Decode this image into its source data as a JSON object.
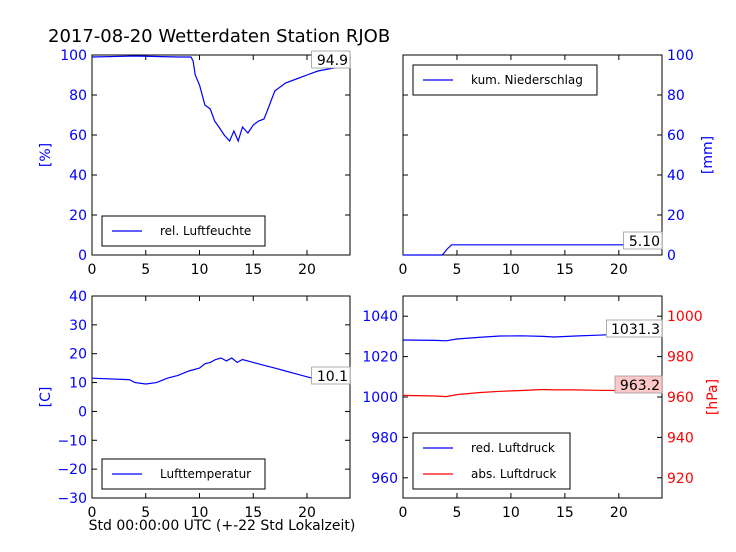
{
  "figure": {
    "title": "2017-08-20 Wetterdaten Station RJOB",
    "xlabel": "Std 00:00:00 UTC (+-22 Std Lokalzeit)"
  },
  "chart_data": [
    {
      "id": "humidity",
      "type": "line",
      "ylabel": "[%]",
      "ylabel_color": "#0000ff",
      "xlim": [
        0,
        24
      ],
      "ylim": [
        0,
        100
      ],
      "xticks": [
        "0",
        "5",
        "10",
        "15",
        "20"
      ],
      "yticks": [
        "0",
        "20",
        "40",
        "60",
        "80",
        "100"
      ],
      "ytick_color": "#0000ff",
      "series": [
        {
          "name": "rel. Luftfeuchte",
          "color": "#0000ff",
          "points": [
            [
              0,
              99
            ],
            [
              4,
              99.5
            ],
            [
              8,
              99
            ],
            [
              9.2,
              99
            ],
            [
              9.4,
              97
            ],
            [
              9.6,
              90
            ],
            [
              10,
              85
            ],
            [
              10.5,
              75
            ],
            [
              11,
              73
            ],
            [
              11.4,
              67
            ],
            [
              11.8,
              64
            ],
            [
              12.3,
              60
            ],
            [
              12.8,
              57
            ],
            [
              13.2,
              62
            ],
            [
              13.6,
              57
            ],
            [
              14,
              64
            ],
            [
              14.5,
              61
            ],
            [
              15,
              65
            ],
            [
              15.5,
              67
            ],
            [
              16,
              68
            ],
            [
              16.3,
              72
            ],
            [
              17,
              82
            ],
            [
              18,
              86
            ],
            [
              19,
              88
            ],
            [
              20,
              90
            ],
            [
              21,
              92
            ],
            [
              22.5,
              93.5
            ],
            [
              24,
              94.9
            ]
          ]
        }
      ],
      "annotation": "94.9",
      "legend": "bottom-left"
    },
    {
      "id": "precip",
      "type": "line",
      "ylabel": "[mm]",
      "ylabel_color": "#0000ff",
      "yaxis_side": "right",
      "xlim": [
        0,
        24
      ],
      "ylim": [
        0,
        100
      ],
      "xticks": [
        "0",
        "5",
        "10",
        "15",
        "20"
      ],
      "yticks": [
        "0",
        "20",
        "40",
        "60",
        "80",
        "100"
      ],
      "ytick_color": "#0000ff",
      "series": [
        {
          "name": "kum. Niederschlag",
          "color": "#0000ff",
          "points": [
            [
              0,
              0
            ],
            [
              3.6,
              0
            ],
            [
              3.8,
              1
            ],
            [
              4.1,
              3
            ],
            [
              4.5,
              5.1
            ],
            [
              24,
              5.1
            ]
          ]
        }
      ],
      "annotation": "5.10",
      "legend": "top-left"
    },
    {
      "id": "temp",
      "type": "line",
      "ylabel": "[C]",
      "ylabel_color": "#0000ff",
      "xlim": [
        0,
        24
      ],
      "ylim": [
        -30,
        40
      ],
      "xticks": [
        "0",
        "5",
        "10",
        "15",
        "20"
      ],
      "yticks": [
        "−30",
        "−20",
        "−10",
        "0",
        "10",
        "20",
        "30",
        "40"
      ],
      "ytick_color": "#0000ff",
      "series": [
        {
          "name": "Lufttemperatur",
          "color": "#0000ff",
          "points": [
            [
              0,
              11.5
            ],
            [
              3.5,
              11
            ],
            [
              4,
              10
            ],
            [
              5,
              9.5
            ],
            [
              6,
              10
            ],
            [
              7,
              11.5
            ],
            [
              8,
              12.5
            ],
            [
              9,
              14
            ],
            [
              10,
              15
            ],
            [
              10.5,
              16.5
            ],
            [
              11,
              17
            ],
            [
              11.5,
              18
            ],
            [
              12,
              18.5
            ],
            [
              12.5,
              17.5
            ],
            [
              13,
              18.5
            ],
            [
              13.5,
              17
            ],
            [
              14,
              18
            ],
            [
              15,
              17
            ],
            [
              16,
              16
            ],
            [
              17,
              15
            ],
            [
              18,
              14
            ],
            [
              19,
              13
            ],
            [
              20,
              12
            ],
            [
              21,
              11
            ],
            [
              22,
              10.5
            ],
            [
              24,
              10.1
            ]
          ]
        }
      ],
      "annotation": "10.1",
      "legend": "bottom-left"
    },
    {
      "id": "pressure",
      "type": "line",
      "ylabel": "[hPa]",
      "ylabel_color": "#ff0000",
      "xlim": [
        0,
        24
      ],
      "ylim": [
        950,
        1050
      ],
      "ylim_right": [
        910,
        1010
      ],
      "xticks": [
        "0",
        "5",
        "10",
        "15",
        "20"
      ],
      "yticks": [
        "960",
        "980",
        "1000",
        "1020",
        "1040"
      ],
      "yticks_right": [
        "920",
        "940",
        "960",
        "980",
        "1000"
      ],
      "ytick_color": "#0000ff",
      "ytick_right_color": "#ff0000",
      "series": [
        {
          "name": "red. Luftdruck",
          "color": "#0000ff",
          "axis": "left",
          "points": [
            [
              0,
              1028.2
            ],
            [
              3,
              1028
            ],
            [
              4,
              1027.8
            ],
            [
              5,
              1028.7
            ],
            [
              7,
              1029.5
            ],
            [
              9,
              1030.2
            ],
            [
              11,
              1030.3
            ],
            [
              13,
              1030
            ],
            [
              14,
              1029.7
            ],
            [
              16,
              1030.2
            ],
            [
              18,
              1030.6
            ],
            [
              20,
              1031
            ],
            [
              22,
              1031.2
            ],
            [
              24,
              1031.3
            ]
          ]
        },
        {
          "name": "abs. Luftdruck",
          "color": "#ff0000",
          "axis": "right",
          "points": [
            [
              0,
              960.8
            ],
            [
              3,
              960.5
            ],
            [
              4,
              960.2
            ],
            [
              5,
              961.2
            ],
            [
              7,
              962.2
            ],
            [
              9,
              962.8
            ],
            [
              11,
              963.2
            ],
            [
              13,
              963.7
            ],
            [
              14,
              963.5
            ],
            [
              16,
              963.5
            ],
            [
              18,
              963.3
            ],
            [
              20,
              963.2
            ],
            [
              22,
              963.4
            ],
            [
              24,
              963.2
            ]
          ]
        }
      ],
      "annotations": [
        "1031.3",
        "963.2"
      ],
      "legend": "bottom-left"
    }
  ]
}
